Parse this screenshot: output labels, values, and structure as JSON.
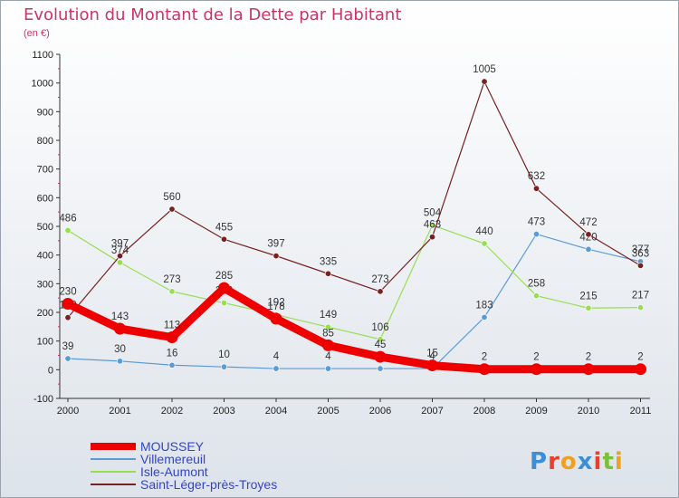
{
  "chart_data": {
    "type": "line",
    "title": "Evolution du Montant de la Dette par Habitant",
    "subtitle": "(en €)",
    "xlabel": "",
    "ylabel": "",
    "x": [
      "2000",
      "2001",
      "2002",
      "2003",
      "2004",
      "2005",
      "2006",
      "2007",
      "2008",
      "2009",
      "2010",
      "2011"
    ],
    "ylim": [
      -100,
      1100
    ],
    "yticks": [
      -100,
      0,
      100,
      200,
      300,
      400,
      500,
      600,
      700,
      800,
      900,
      1000,
      1100
    ],
    "grid": false,
    "legend_position": "bottom-left",
    "series": [
      {
        "name": "MOUSSEY",
        "color": "#ee0000",
        "emphasis": true,
        "values": [
          230,
          143,
          113,
          285,
          178,
          85,
          45,
          15,
          2,
          2,
          2,
          2
        ],
        "labels": [
          "230",
          "143",
          "113",
          "285",
          "178",
          "85",
          "45",
          "15",
          "2",
          "2",
          "2",
          "2"
        ]
      },
      {
        "name": "Villemereuil",
        "color": "#5b9bd5",
        "values": [
          39,
          30,
          16,
          10,
          4,
          4,
          4,
          4,
          183,
          473,
          420,
          377
        ],
        "labels": [
          "39",
          "30",
          "16",
          "10",
          "4",
          "4",
          "",
          "4",
          "183",
          "473",
          "420",
          "377"
        ]
      },
      {
        "name": "Isle-Aumont",
        "color": "#99dd55",
        "values": [
          486,
          374,
          273,
          233,
          192,
          149,
          106,
          504,
          440,
          258,
          215,
          217
        ],
        "labels": [
          "486",
          "374",
          "273",
          "233",
          "192",
          "149",
          "106",
          "504",
          "440",
          "258",
          "215",
          "217"
        ]
      },
      {
        "name": "Saint-Léger-près-Troyes",
        "color": "#772222",
        "values": [
          182,
          397,
          560,
          455,
          397,
          335,
          273,
          463,
          1005,
          632,
          472,
          363
        ],
        "labels": [
          "182",
          "397",
          "560",
          "455",
          "397",
          "335",
          "273",
          "463",
          "1005",
          "632",
          "472",
          "363"
        ]
      }
    ]
  },
  "logo": {
    "text": "Proxiti"
  },
  "colors": {
    "title": "#cc3366",
    "background_top": "#ffffff",
    "background_bottom": "#dde3ea",
    "axis": "#333333"
  }
}
